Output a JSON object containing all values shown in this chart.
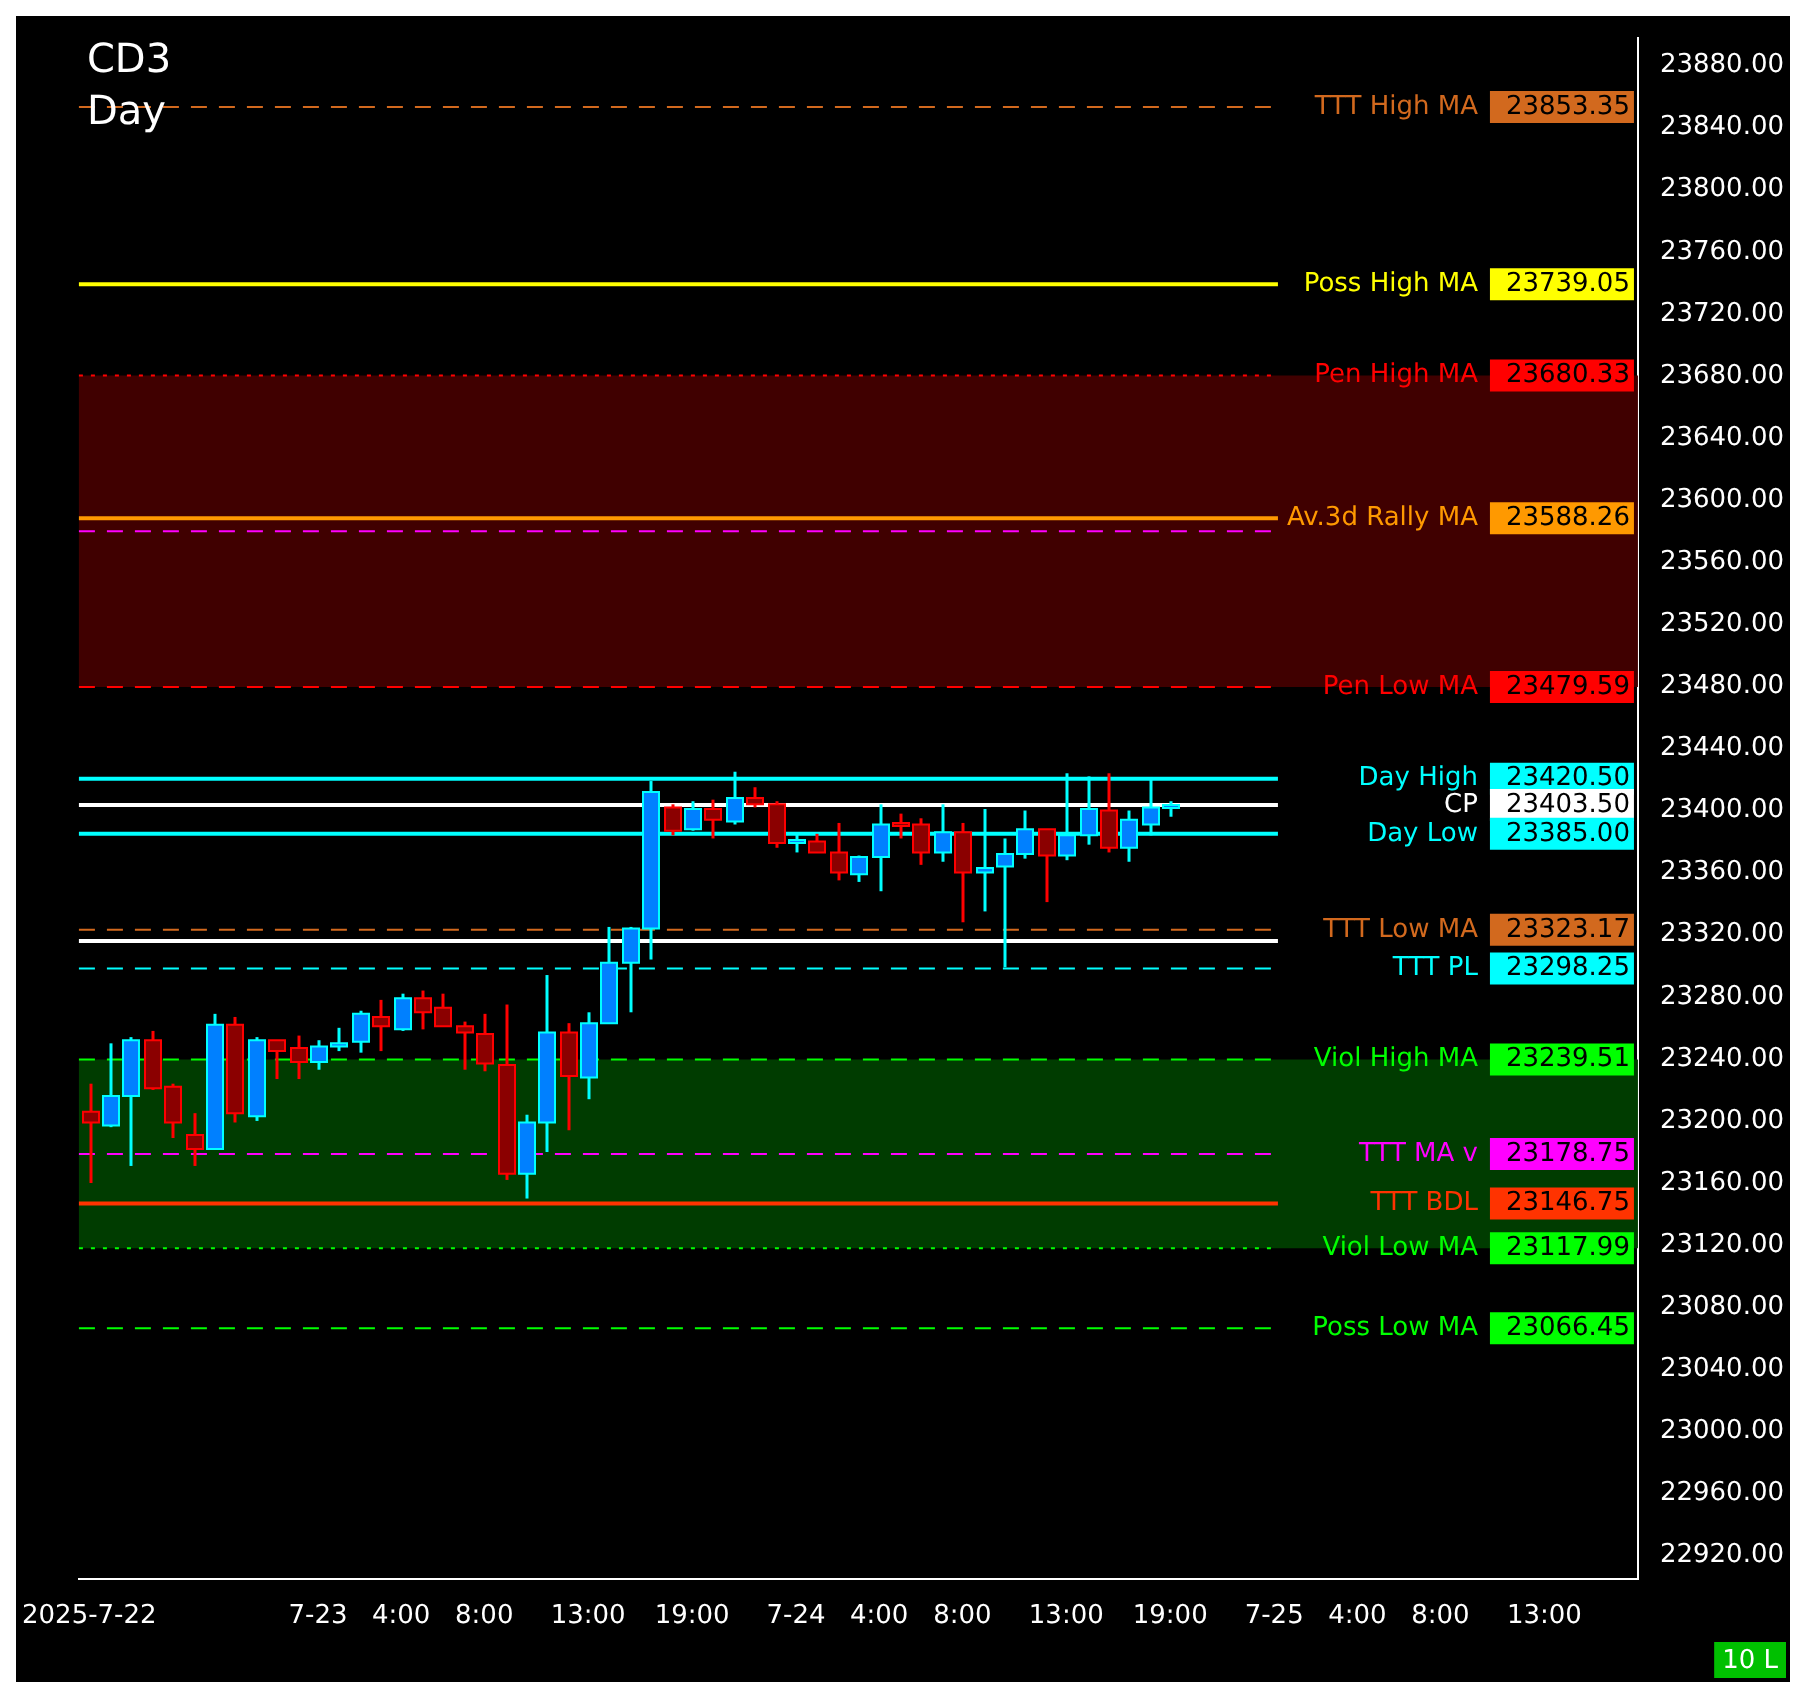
{
  "chart_data": {
    "type": "candlestick",
    "title": "CD3",
    "subtitle": "Day",
    "categories": [
      "2025-7-22",
      null,
      null,
      null,
      null,
      null,
      null,
      null,
      null,
      null,
      null,
      "7-23",
      null,
      null,
      null,
      "4:00",
      null,
      null,
      null,
      "8:00",
      null,
      null,
      null,
      null,
      "13:00",
      null,
      null,
      null,
      null,
      "19:00",
      null,
      null,
      null,
      null,
      "7-24",
      null,
      null,
      null,
      "4:00",
      null,
      null,
      null,
      "8:00",
      null,
      null,
      null,
      null,
      "13:00",
      null,
      null,
      null,
      null,
      "19:00",
      null,
      null,
      null,
      null,
      "7-25",
      null,
      null,
      null,
      "4:00",
      null,
      null,
      null,
      "8:00",
      null,
      null,
      null,
      null,
      "13:00",
      null,
      null,
      null,
      null
    ],
    "ohlc": [
      [
        23206,
        23224,
        23160,
        23199
      ],
      [
        23197,
        23250,
        23196,
        23216
      ],
      [
        23216,
        23254,
        23171,
        23252
      ],
      [
        23252,
        23258,
        23220,
        23221
      ],
      [
        23222,
        23224,
        23189,
        23199
      ],
      [
        23191,
        23205,
        23171,
        23182
      ],
      [
        23182,
        23269,
        23182,
        23262
      ],
      [
        23262,
        23267,
        23199,
        23205
      ],
      [
        23203,
        23254,
        23200,
        23252
      ],
      [
        23252,
        23252,
        23227,
        23245
      ],
      [
        23247,
        23255,
        23227,
        23238
      ],
      [
        23238,
        23252,
        23233,
        23248
      ],
      [
        23248,
        23260,
        23245,
        23250
      ],
      [
        23251,
        23271,
        23244,
        23269
      ],
      [
        23267,
        23278,
        23245,
        23261
      ],
      [
        23259,
        23282,
        23258,
        23279
      ],
      [
        23279,
        23284,
        23259,
        23270
      ],
      [
        23273,
        23282,
        23261,
        23261
      ],
      [
        23261,
        23264,
        23233,
        23257
      ],
      [
        23256,
        23269,
        23232,
        23237
      ],
      [
        23236,
        23275,
        23162,
        23166
      ],
      [
        23166,
        23204,
        23150,
        23199
      ],
      [
        23199,
        23294,
        23180,
        23257
      ],
      [
        23257,
        23263,
        23194,
        23229
      ],
      [
        23228,
        23270,
        23214,
        23263
      ],
      [
        23263,
        23325,
        23263,
        23302
      ],
      [
        23302,
        23325,
        23270,
        23324
      ],
      [
        23324,
        23419,
        23304,
        23412
      ],
      [
        23402,
        23404,
        23384,
        23387
      ],
      [
        23388,
        23406,
        23387,
        23401
      ],
      [
        23401,
        23407,
        23382,
        23394
      ],
      [
        23393,
        23425,
        23391,
        23408
      ],
      [
        23408,
        23415,
        23402,
        23404
      ],
      [
        23404,
        23406,
        23376,
        23379
      ],
      [
        23379,
        23386,
        23373,
        23381
      ],
      [
        23380,
        23385,
        23373,
        23373
      ],
      [
        23373,
        23392,
        23355,
        23360
      ],
      [
        23359,
        23371,
        23354,
        23370
      ],
      [
        23370,
        23404,
        23348,
        23391
      ],
      [
        23392,
        23398,
        23382,
        23391
      ],
      [
        23391,
        23395,
        23365,
        23373
      ],
      [
        23373,
        23404,
        23367,
        23386
      ],
      [
        23386,
        23392,
        23328,
        23360
      ],
      [
        23360,
        23401,
        23335,
        23363
      ],
      [
        23364,
        23382,
        23299,
        23372
      ],
      [
        23372,
        23400,
        23369,
        23388
      ],
      [
        23388,
        23388,
        23341,
        23371
      ],
      [
        23371,
        23424,
        23368,
        23384
      ],
      [
        23384,
        23422,
        23378,
        23401
      ],
      [
        23400,
        23424,
        23373,
        23376
      ],
      [
        23376,
        23400,
        23367,
        23394
      ],
      [
        23391,
        23421,
        23384,
        23402
      ],
      [
        23402,
        23406,
        23396,
        23403.5
      ],
      null,
      null,
      null,
      null,
      null,
      null,
      null,
      null,
      null,
      null,
      null,
      null,
      null,
      null,
      null,
      null,
      null,
      null,
      null,
      null,
      null,
      null
    ],
    "ylim": [
      22905,
      23898
    ],
    "yticks": [
      {
        "value": 22920,
        "label": "22920.00"
      },
      {
        "value": 22960,
        "label": "22960.00"
      },
      {
        "value": 23000,
        "label": "23000.00"
      },
      {
        "value": 23040,
        "label": "23040.00"
      },
      {
        "value": 23080,
        "label": "23080.00"
      },
      {
        "value": 23120,
        "label": "23120.00"
      },
      {
        "value": 23160,
        "label": "23160.00"
      },
      {
        "value": 23200,
        "label": "23200.00"
      },
      {
        "value": 23240,
        "label": "23240.00"
      },
      {
        "value": 23280,
        "label": "23280.00"
      },
      {
        "value": 23320,
        "label": "23320.00"
      },
      {
        "value": 23360,
        "label": "23360.00"
      },
      {
        "value": 23400,
        "label": "23400.00"
      },
      {
        "value": 23440,
        "label": "23440.00"
      },
      {
        "value": 23480,
        "label": "23480.00"
      },
      {
        "value": 23520,
        "label": "23520.00"
      },
      {
        "value": 23560,
        "label": "23560.00"
      },
      {
        "value": 23600,
        "label": "23600.00"
      },
      {
        "value": 23640,
        "label": "23640.00"
      },
      {
        "value": 23680,
        "label": "23680.00"
      },
      {
        "value": 23720,
        "label": "23720.00"
      },
      {
        "value": 23760,
        "label": "23760.00"
      },
      {
        "value": 23800,
        "label": "23800.00"
      },
      {
        "value": 23840,
        "label": "23840.00"
      },
      {
        "value": 23880,
        "label": "23880.00"
      }
    ],
    "bands": [
      {
        "axis": "y",
        "from": 23479.59,
        "to": 23680.33,
        "color": "#400000"
      },
      {
        "axis": "y",
        "from": 23117.99,
        "to": 23239.51,
        "color": "#003c00"
      }
    ],
    "ref_lines": [
      {
        "axis": "y",
        "value": 23853.35,
        "label": "TTT High MA",
        "color": "#d2691e",
        "line_style": "dashed"
      },
      {
        "axis": "y",
        "value": 23739.05,
        "label": "Poss High MA",
        "color": "#ffff00",
        "line_style": "solid"
      },
      {
        "axis": "y",
        "value": 23680.33,
        "label": "Pen High MA",
        "color": "#ff0000",
        "line_style": "dotted"
      },
      {
        "axis": "y",
        "value": 23588.26,
        "label": "Av.3d Rally MA",
        "color": "#ff9900",
        "line_style": "solid"
      },
      {
        "axis": "y",
        "value": 23580,
        "color": "#ff00ff",
        "line_style": "dashed"
      },
      {
        "axis": "y",
        "value": 23479.59,
        "label": "Pen Low MA",
        "color": "#ff0000",
        "line_style": "dashed"
      },
      {
        "axis": "y",
        "value": 23420.5,
        "label": "Day High",
        "color": "#00ffff",
        "line_style": "solid"
      },
      {
        "axis": "y",
        "value": 23403.5,
        "label": "CP",
        "color": "#ffffff",
        "line_style": "solid"
      },
      {
        "axis": "y",
        "value": 23385,
        "label": "Day Low",
        "color": "#00ffff",
        "line_style": "solid"
      },
      {
        "axis": "y",
        "value": 23323.17,
        "label": "TTT Low MA",
        "color": "#d2691e",
        "line_style": "dashed"
      },
      {
        "axis": "y",
        "value": 23316,
        "color": "#ffffff",
        "line_style": "solid"
      },
      {
        "axis": "y",
        "value": 23298.25,
        "label": "TTT PL",
        "color": "#00ffff",
        "line_style": "dashed"
      },
      {
        "axis": "y",
        "value": 23239.51,
        "label": "Viol High MA",
        "color": "#00ff00",
        "line_style": "dashed"
      },
      {
        "axis": "y",
        "value": 23178.75,
        "label": "TTT MA v",
        "color": "#ff00ff",
        "line_style": "dashed"
      },
      {
        "axis": "y",
        "value": 23146.75,
        "label": "TTT BDL",
        "color": "#ff3300",
        "line_style": "solid"
      },
      {
        "axis": "y",
        "value": 23117.99,
        "label": "Viol Low MA",
        "color": "#00ff00",
        "line_style": "dotted"
      },
      {
        "axis": "y",
        "value": 23066.45,
        "label": "Poss Low MA",
        "color": "#00ff00",
        "line_style": "dashed"
      }
    ],
    "annotations": [
      "10 L",
      "23853.35",
      "23739.05",
      "23680.33",
      "23588.26",
      "23479.59",
      "23420.50",
      "23403.50",
      "23385.00",
      "23323.17",
      "23298.25",
      "23239.51",
      "23178.75",
      "23146.75",
      "23117.99",
      "23066.45"
    ],
    "grid": false,
    "legend": false
  }
}
